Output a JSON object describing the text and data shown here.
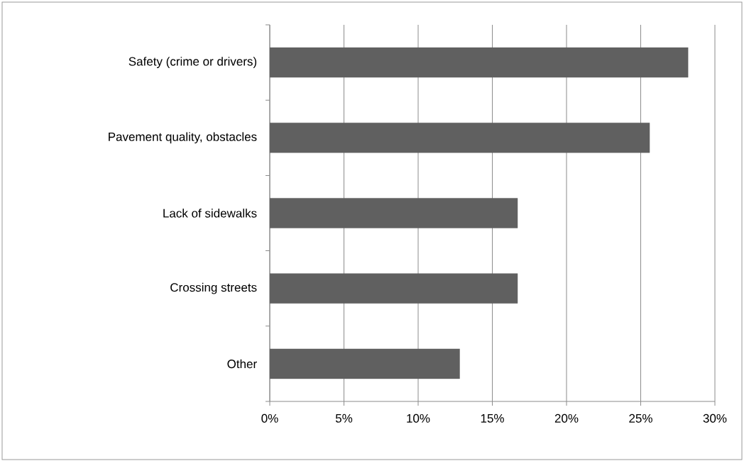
{
  "chart_data": {
    "type": "bar",
    "orientation": "horizontal",
    "categories": [
      "Safety (crime or drivers)",
      "Pavement quality, obstacles",
      "Lack of sidewalks",
      "Crossing streets",
      "Other"
    ],
    "values": [
      28.2,
      25.6,
      16.7,
      16.7,
      12.8
    ],
    "color": "#606060",
    "xlim": [
      0,
      30
    ],
    "xticks": [
      {
        "value": 0,
        "label": "0%"
      },
      {
        "value": 5,
        "label": "5%"
      },
      {
        "value": 10,
        "label": "10%"
      },
      {
        "value": 15,
        "label": "15%"
      },
      {
        "value": 20,
        "label": "20%"
      },
      {
        "value": 25,
        "label": "25%"
      },
      {
        "value": 30,
        "label": "30%"
      }
    ],
    "grid": "x"
  }
}
